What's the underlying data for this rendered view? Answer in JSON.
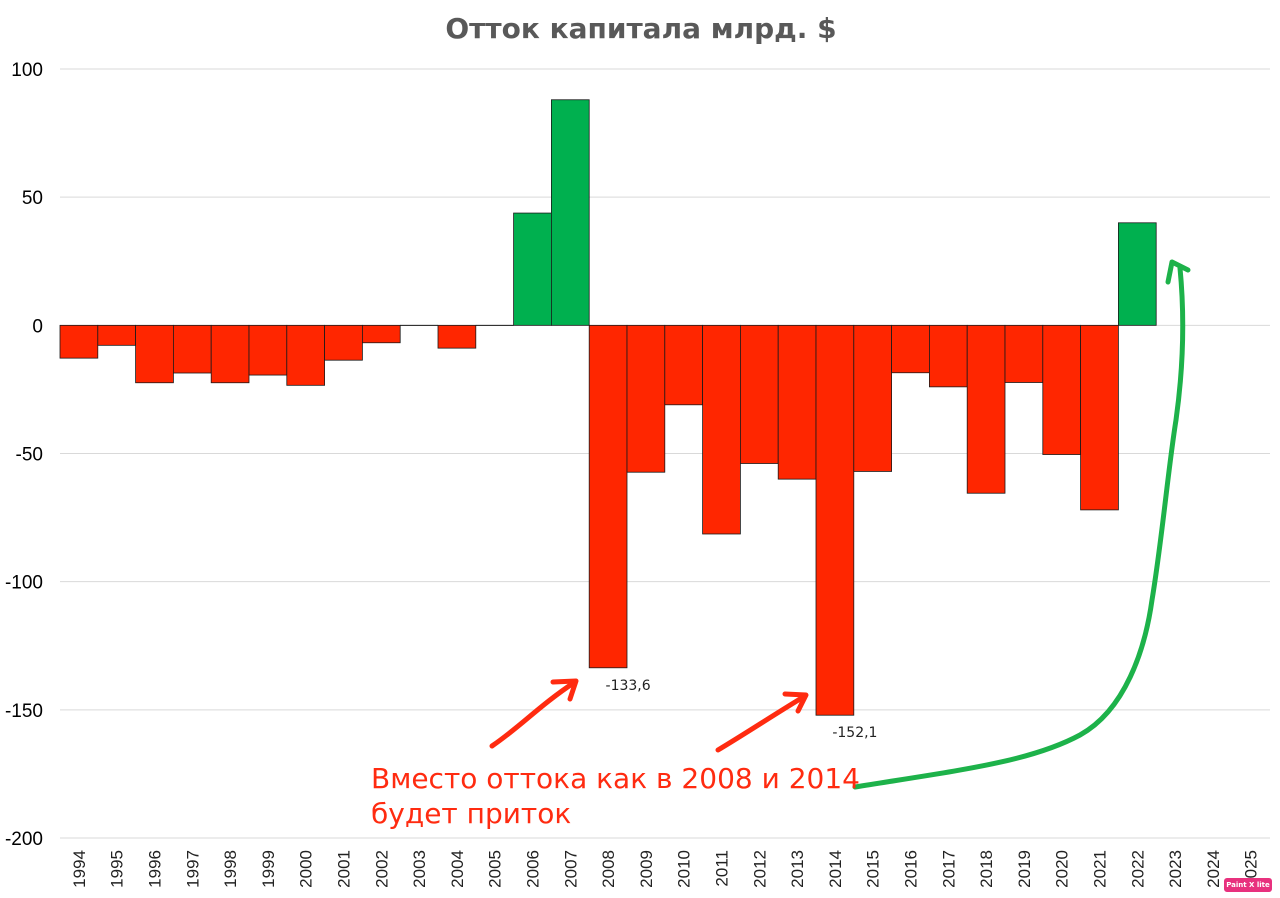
{
  "chart_data": {
    "type": "bar",
    "title": "Отток капитала млрд. $",
    "categories": [
      "1994",
      "1995",
      "1996",
      "1997",
      "1998",
      "1999",
      "2000",
      "2001",
      "2002",
      "2003",
      "2004",
      "2005",
      "2006",
      "2007",
      "2008",
      "2009",
      "2010",
      "2011",
      "2012",
      "2013",
      "2014",
      "2015",
      "2016",
      "2017",
      "2018",
      "2019",
      "2020",
      "2021",
      "2022",
      "2023",
      "2024",
      "2025"
    ],
    "values": [
      -12.8,
      -7.8,
      -22.4,
      -18.6,
      -22.4,
      -19.4,
      -23.4,
      -13.6,
      -6.8,
      0,
      -8.9,
      0,
      43.8,
      88,
      -133.6,
      -57.3,
      -31,
      -81.4,
      -53.9,
      -60,
      -152.1,
      -57,
      -18.5,
      -24,
      -65.5,
      -22.3,
      -50.4,
      -72,
      40,
      null,
      null,
      null
    ],
    "ylim": [
      -200,
      100
    ],
    "yticks": [
      "100",
      "50",
      "0",
      "-50",
      "-100",
      "-150",
      "-200"
    ],
    "ytick_values": [
      100,
      50,
      0,
      -50,
      -100,
      -150,
      -200
    ],
    "grid": true,
    "colors": {
      "positive": "#00b04f",
      "negative": "#ff2600",
      "grid": "#d9d9d9",
      "title": "#595959"
    },
    "data_labels": [
      {
        "category": "2008",
        "text": "-133,6"
      },
      {
        "category": "2014",
        "text": "-152,1"
      }
    ],
    "annotations": {
      "line1": "Вместо оттока как в 2008 и 2014",
      "line2": "будет приток"
    }
  },
  "watermark": "Paint X lite"
}
